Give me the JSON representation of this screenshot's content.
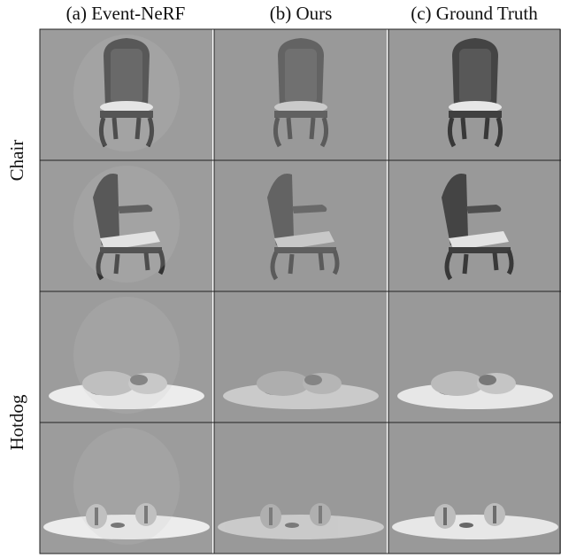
{
  "columns": [
    "(a) Event-NeRF",
    "(b) Ours",
    "(c) Ground Truth"
  ],
  "row_groups": [
    "Chair",
    "Hotdog"
  ]
}
